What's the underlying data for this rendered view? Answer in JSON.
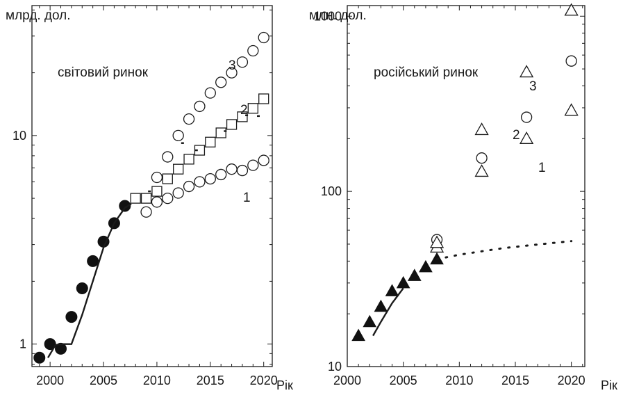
{
  "chart_data": [
    {
      "type": "scatter",
      "ylabel": "млрд. дол.",
      "xlabel": "Рік",
      "annotation": "світовий ринок",
      "yscale": "log",
      "xlim": [
        1998.3,
        2020.8
      ],
      "ylim": [
        0.78,
        42
      ],
      "xticks": [
        2000,
        2005,
        2010,
        2015,
        2020
      ],
      "xtick_labels": [
        "2000",
        "2005",
        "2010",
        "2015",
        "2020"
      ],
      "yticks": [
        1,
        10
      ],
      "ytick_labels": [
        "1",
        "10"
      ],
      "series": [
        {
          "marker": "filled-circle",
          "x": [
            1999,
            2000,
            2001,
            2002,
            2003,
            2004,
            2005,
            2006,
            2007
          ],
          "y": [
            0.86,
            1.0,
            0.95,
            1.35,
            1.85,
            2.5,
            3.1,
            3.8,
            4.6
          ]
        },
        {
          "label": "1",
          "marker": "open-circle",
          "x": [
            2009,
            2010,
            2011,
            2012,
            2013,
            2014,
            2015,
            2016,
            2017,
            2018,
            2019,
            2020
          ],
          "y": [
            4.3,
            4.8,
            5.0,
            5.3,
            5.7,
            6.0,
            6.2,
            6.5,
            6.9,
            6.8,
            7.2,
            7.6
          ]
        },
        {
          "label": "2",
          "marker": "open-square",
          "x": [
            2008,
            2009,
            2010,
            2011,
            2012,
            2013,
            2014,
            2015,
            2016,
            2017,
            2018,
            2019,
            2020
          ],
          "y": [
            5.0,
            5.0,
            5.4,
            6.2,
            6.9,
            7.7,
            8.5,
            9.3,
            10.3,
            11.3,
            12.3,
            13.5,
            15.0
          ]
        },
        {
          "label": "3",
          "marker": "open-circle",
          "x": [
            2010,
            2011,
            2012,
            2013,
            2014,
            2015,
            2016,
            2017,
            2018,
            2019,
            2020
          ],
          "y": [
            6.3,
            7.9,
            10.0,
            12.0,
            13.8,
            16.0,
            18.0,
            20.0,
            22.5,
            25.5,
            29.5
          ]
        },
        {
          "marker": "line",
          "x": [
            1999.8,
            2000.5,
            2001.2,
            2002.0,
            2003.0,
            2004.0,
            2005.0,
            2006.0,
            2007.0,
            2007.6
          ],
          "y": [
            0.86,
            0.99,
            1.0,
            1.0,
            1.38,
            2.0,
            2.9,
            3.8,
            4.5,
            4.7
          ]
        },
        {
          "marker": "dash",
          "x": [
            2009.3,
            2012.4,
            2013.7,
            2016.4,
            2018.4,
            2019.5
          ],
          "y": [
            5.4,
            9.2,
            8.5,
            10.5,
            12.5,
            12.4
          ]
        }
      ]
    },
    {
      "type": "scatter",
      "ylabel": "млн. дол.",
      "xlabel": "Рік",
      "annotation": "російський ринок",
      "yscale": "log",
      "xlim": [
        2000,
        2021.2
      ],
      "ylim": [
        10,
        1150
      ],
      "xticks": [
        2000,
        2005,
        2010,
        2015,
        2020
      ],
      "xtick_labels": [
        "2000",
        "2005",
        "2010",
        "2015",
        "2020"
      ],
      "yticks": [
        10,
        100,
        1000
      ],
      "ytick_labels": [
        "10",
        "100",
        "1000"
      ],
      "series": [
        {
          "marker": "filled-triangle",
          "x": [
            2001,
            2002,
            2003,
            2004,
            2005,
            2006,
            2007,
            2008
          ],
          "y": [
            15,
            18,
            22,
            27,
            30,
            33,
            37,
            41
          ]
        },
        {
          "marker": "line",
          "x": [
            2002.3,
            2003.0,
            2004.0,
            2005.0
          ],
          "y": [
            15,
            18,
            23,
            28
          ]
        },
        {
          "marker": "dotted",
          "x": [
            2008,
            2010,
            2012,
            2014,
            2016,
            2018,
            2020
          ],
          "y": [
            41,
            43.5,
            45.5,
            47.5,
            49,
            50.5,
            52
          ]
        },
        {
          "label": "1",
          "marker": "open-triangle",
          "x": [
            2008,
            2012,
            2016,
            2020
          ],
          "y": [
            48,
            130,
            200,
            290
          ]
        },
        {
          "label": "2",
          "marker": "open-circle",
          "x": [
            2008,
            2012,
            2016,
            2020
          ],
          "y": [
            53,
            155,
            265,
            555
          ]
        },
        {
          "label": "3",
          "marker": "open-triangle",
          "x": [
            2008,
            2012,
            2016,
            2020
          ],
          "y": [
            51,
            225,
            480,
            1080
          ]
        }
      ]
    }
  ],
  "curve_labels": {
    "left": [
      "3",
      "2",
      "1"
    ],
    "right": [
      "3",
      "2",
      "1"
    ]
  }
}
